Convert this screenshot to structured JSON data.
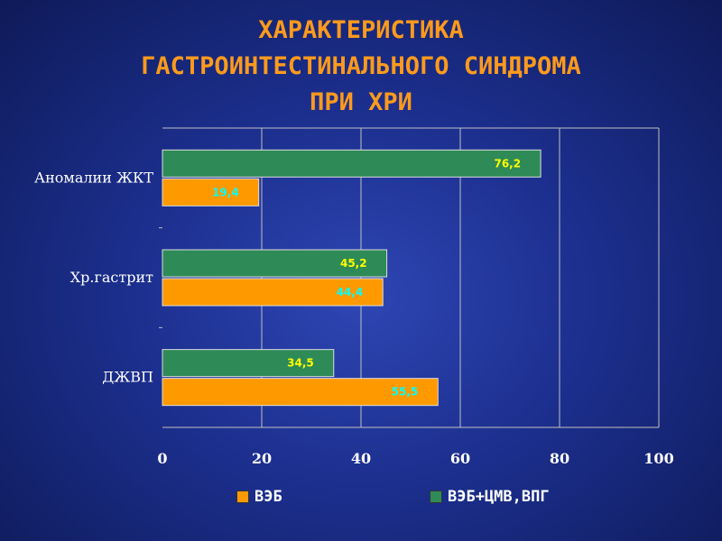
{
  "title": {
    "line1": "ХАРАКТЕРИСТИКА",
    "line2": "ГАСТРОИНТЕСТИНАЛЬНОГО СИНДРОМА",
    "line3": "ПРИ ХРИ"
  },
  "colors": {
    "veb": "#ff9900",
    "veb_cmv": "#2e8b57",
    "veb_label": "#00ffff",
    "veb_cmv_label": "#ffff00",
    "grid": "#c0c0c0"
  },
  "chart_data": {
    "type": "bar",
    "orientation": "horizontal",
    "categories": [
      "Аномалии ЖКТ",
      "Хр.гастрит",
      "ДЖВП"
    ],
    "series": [
      {
        "name": "ВЭБ",
        "values": [
          19.4,
          44.4,
          55.5
        ],
        "labels": [
          "19,4",
          "44,4",
          "55,5"
        ]
      },
      {
        "name": "ВЭБ+ЦМВ,ВПГ",
        "values": [
          76.2,
          45.2,
          34.5
        ],
        "labels": [
          "76,2",
          "45,2",
          "34,5"
        ]
      }
    ],
    "xlim": [
      0,
      100
    ],
    "xticks": [
      "0",
      "20",
      "40",
      "60",
      "80",
      "100"
    ],
    "grid": true,
    "legend": "bottom"
  }
}
